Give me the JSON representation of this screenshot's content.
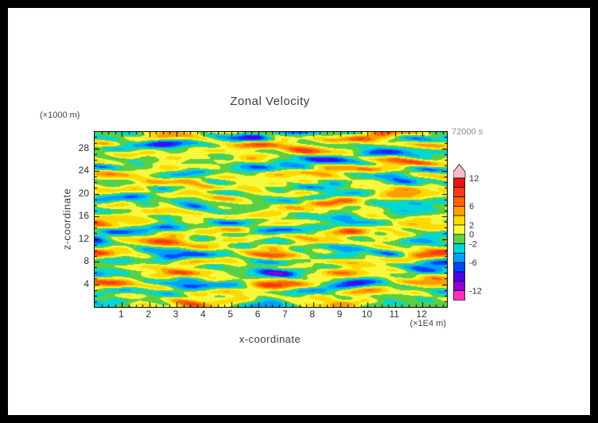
{
  "chart_data": {
    "type": "heatmap",
    "title": "Zonal Velocity",
    "time": "72000 s",
    "xlabel": "x-coordinate",
    "ylabel": "z-coordinate",
    "x_units": "(×1E4 m)",
    "y_units": "(×1000 m)",
    "x_range": [
      0,
      12.9
    ],
    "z_range": [
      0,
      30.9
    ],
    "x_ticks": [
      1,
      2,
      3,
      4,
      5,
      6,
      7,
      8,
      9,
      10,
      11,
      12
    ],
    "z_ticks": [
      4,
      8,
      12,
      16,
      20,
      24,
      28
    ],
    "contour_interval": 2,
    "contour_levels": [
      -12,
      -10,
      -8,
      -6,
      -4,
      -2,
      0,
      2,
      4,
      6,
      8,
      10,
      12
    ],
    "colorbar": {
      "labels": [
        "12",
        "6",
        "2",
        "0",
        "-2",
        "-6",
        "-12"
      ],
      "label_values": [
        12,
        6,
        2,
        0,
        -2,
        -6,
        -12
      ],
      "colors_bottom_to_top": [
        "#ff30c0",
        "#9000d0",
        "#5000e8",
        "#0048ff",
        "#00a0ff",
        "#00d8d8",
        "#5ad246",
        "#fafa3c",
        "#ffdc00",
        "#ffa000",
        "#ff6400",
        "#f83c14",
        "#e41414",
        "#f8bcc8"
      ]
    },
    "field_description": "Turbulent zonal velocity cross-section: horizontally elongated eddies; background near 0 (yellow/green bands, values within ±2) with embedded positive anomalies (orange/red, +4 to +12) and negative anomalies (cyan/blue, -4 to -12); rare extremes beyond ±12 (pink/magenta)."
  }
}
